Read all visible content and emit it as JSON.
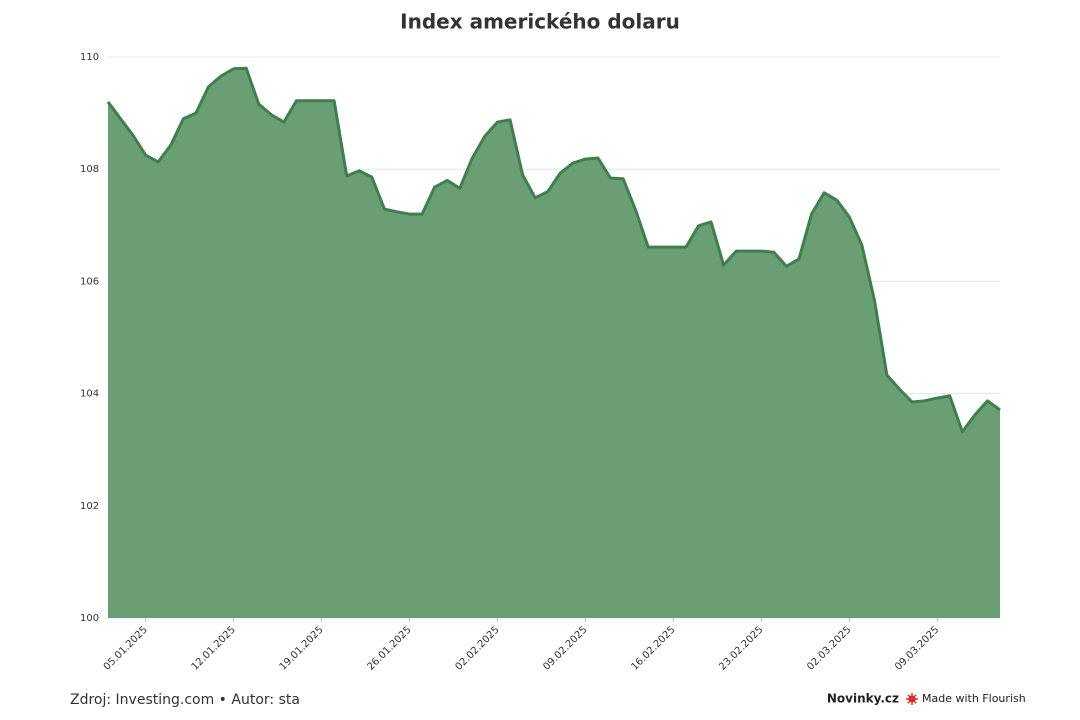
{
  "chart_data": {
    "type": "area",
    "title": "Index amerického dolaru",
    "source": "Zdroj: Investing.com • Autor: sta",
    "brand": "Novinky.cz",
    "credit": "Made with Flourish",
    "color": "#6a9f76",
    "line_color": "#3f7f4c",
    "grid": true,
    "x": [
      "02.01.2025",
      "03.01.2025",
      "04.01.2025",
      "05.01.2025",
      "06.01.2025",
      "07.01.2025",
      "08.01.2025",
      "09.01.2025",
      "10.01.2025",
      "11.01.2025",
      "12.01.2025",
      "13.01.2025",
      "14.01.2025",
      "15.01.2025",
      "16.01.2025",
      "17.01.2025",
      "18.01.2025",
      "19.01.2025",
      "20.01.2025",
      "21.01.2025",
      "22.01.2025",
      "23.01.2025",
      "24.01.2025",
      "25.01.2025",
      "26.01.2025",
      "27.01.2025",
      "28.01.2025",
      "29.01.2025",
      "30.01.2025",
      "31.01.2025",
      "01.02.2025",
      "02.02.2025",
      "03.02.2025",
      "04.02.2025",
      "05.02.2025",
      "06.02.2025",
      "07.02.2025",
      "08.02.2025",
      "09.02.2025",
      "10.02.2025",
      "11.02.2025",
      "12.02.2025",
      "13.02.2025",
      "14.02.2025",
      "15.02.2025",
      "16.02.2025",
      "17.02.2025",
      "18.02.2025",
      "19.02.2025",
      "20.02.2025",
      "21.02.2025",
      "22.02.2025",
      "23.02.2025",
      "24.02.2025",
      "25.02.2025",
      "26.02.2025",
      "27.02.2025",
      "28.02.2025",
      "01.03.2025",
      "02.03.2025",
      "03.03.2025",
      "04.03.2025",
      "05.03.2025",
      "06.03.2025",
      "07.03.2025",
      "08.03.2025",
      "09.03.2025",
      "10.03.2025",
      "11.03.2025",
      "12.03.2025",
      "13.03.2025",
      "14.03.2025"
    ],
    "values": [
      109.2,
      108.9,
      108.6,
      108.25,
      108.13,
      108.43,
      108.9,
      109.0,
      109.47,
      109.66,
      109.79,
      109.8,
      109.16,
      108.97,
      108.84,
      109.22,
      109.22,
      109.22,
      109.22,
      107.88,
      107.97,
      107.86,
      107.29,
      107.24,
      107.2,
      107.2,
      107.68,
      107.8,
      107.66,
      108.2,
      108.59,
      108.84,
      108.88,
      107.9,
      107.49,
      107.6,
      107.93,
      108.11,
      108.18,
      108.2,
      107.84,
      107.83,
      107.27,
      106.61,
      106.61,
      106.61,
      106.61,
      106.99,
      107.06,
      106.29,
      106.54,
      106.54,
      106.54,
      106.52,
      106.27,
      106.4,
      107.2,
      107.58,
      107.45,
      107.15,
      106.65,
      105.67,
      104.33,
      104.08,
      103.85,
      103.87,
      103.92,
      103.96,
      103.32,
      103.62,
      103.87,
      103.71
    ],
    "xlim": [
      "02.01.2025",
      "14.03.2025"
    ],
    "xticks": [
      "05.01.2025",
      "12.01.2025",
      "19.01.2025",
      "26.01.2025",
      "02.02.2025",
      "09.02.2025",
      "16.02.2025",
      "23.02.2025",
      "02.03.2025",
      "09.03.2025"
    ],
    "ylim": [
      100,
      110
    ],
    "yticks": [
      100,
      102,
      104,
      106,
      108,
      110
    ]
  }
}
